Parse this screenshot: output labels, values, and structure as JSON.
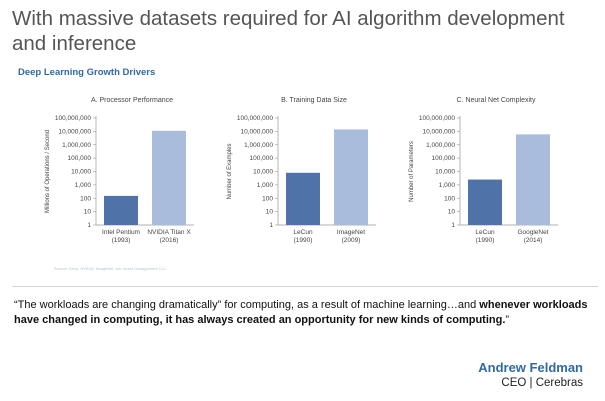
{
  "slide": {
    "title": "With massive datasets required for AI algorithm development and inference",
    "subtitle": "Deep Learning Growth Drivers",
    "source": "Source: Seno, NVIDIA, ImageNet, Ark Invest Management LLC",
    "quote_plain": "“The workloads are changing dramatically” for computing, as a result of machine learning…and",
    "quote_bold": "whenever workloads have changed in computing, it has always created an opportunity for new kinds of computing.",
    "quote_end": "”",
    "author_name": "Andrew Feldman",
    "author_role": "CEO | Cerebras"
  },
  "colors": {
    "bar_dark": "#4f73a8",
    "bar_light": "#a9bcdb",
    "text_gray": "#555555",
    "accent_blue": "#2f6aa6"
  },
  "chart_data": [
    {
      "type": "bar",
      "title": "A. Processor Performance",
      "ylabel": "Millions of Operations / Second",
      "yscale": "log",
      "ylim": [
        1,
        100000000
      ],
      "yticks": [
        "1",
        "10",
        "100",
        "1,000",
        "10,000",
        "100,000",
        "1,000,000",
        "10,000,000",
        "100,000,000"
      ],
      "categories": [
        "Intel Pentium (1993)",
        "NVIDIA Titan X (2016)"
      ],
      "category_lines": [
        [
          "Intel Pentium",
          "(1993)"
        ],
        [
          "NVIDIA Titan X",
          "(2016)"
        ]
      ],
      "values": [
        150,
        11000000
      ]
    },
    {
      "type": "bar",
      "title": "B. Training Data Size",
      "ylabel": "Number of Examples",
      "yscale": "log",
      "ylim": [
        1,
        100000000
      ],
      "yticks": [
        "1",
        "10",
        "100",
        "1,000",
        "10,000",
        "100,000",
        "1,000,000",
        "10,000,000",
        "100,000,000"
      ],
      "categories": [
        "LeCun (1990)",
        "ImageNet (2009)"
      ],
      "category_lines": [
        [
          "LeCun",
          "(1990)"
        ],
        [
          "ImageNet",
          "(2009)"
        ]
      ],
      "values": [
        8000,
        14000000
      ]
    },
    {
      "type": "bar",
      "title": "C. Neural Net Complexity",
      "ylabel": "Number of Parameters",
      "yscale": "log",
      "ylim": [
        1,
        100000000
      ],
      "yticks": [
        "1",
        "10",
        "100",
        "1,000",
        "10,000",
        "100,000",
        "1,000,000",
        "10,000,000",
        "100,000,000"
      ],
      "categories": [
        "LeCun (1990)",
        "GoogleNet (2014)"
      ],
      "category_lines": [
        [
          "LeCun",
          "(1990)"
        ],
        [
          "GoogleNet",
          "(2014)"
        ]
      ],
      "values": [
        2500,
        6000000
      ]
    }
  ]
}
